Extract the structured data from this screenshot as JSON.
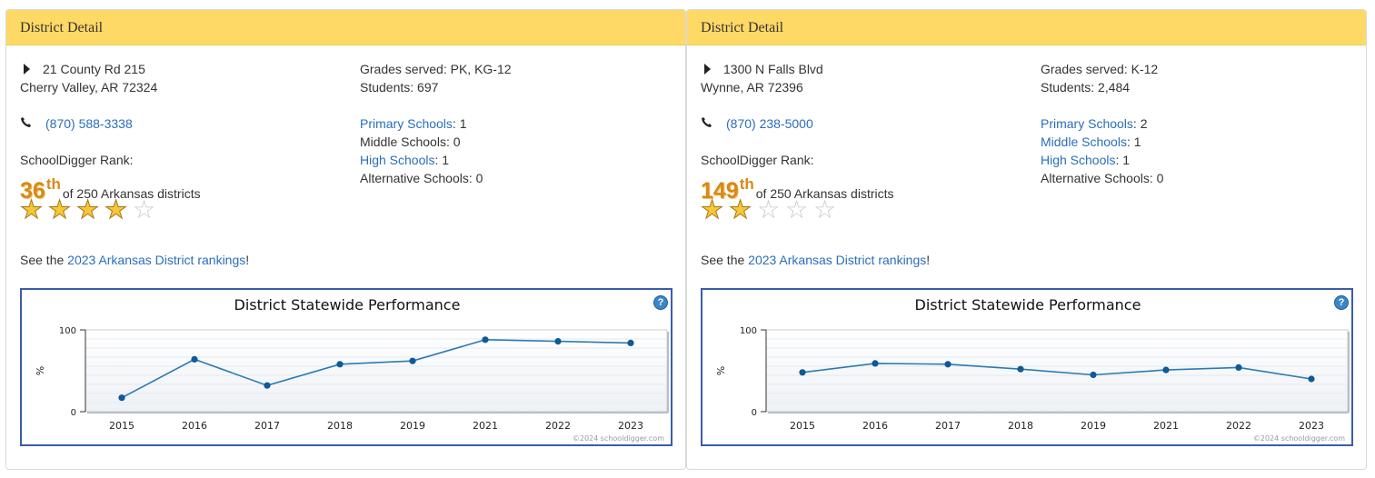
{
  "panels": [
    {
      "heading": "District Detail",
      "address_line1": "21 County Rd 215",
      "address_line2": "Cherry Valley, AR 72324",
      "phone": "(870) 588-3338",
      "rank_label": "SchoolDigger Rank:",
      "rank_number": "36",
      "rank_suffix": "th",
      "rank_of": "of 250 Arkansas districts",
      "star_rating": 4,
      "star_max": 5,
      "see_prefix": "See the ",
      "see_link": "2023 Arkansas District rankings",
      "see_suffix": "!",
      "grades_label": "Grades served:",
      "grades_value": "PK, KG-12",
      "students_label": "Students:",
      "students_value": "697",
      "primary_label": "Primary Schools",
      "primary_value": ": 1",
      "primary_link": true,
      "middle_label": "Middle Schools",
      "middle_value": ": 0",
      "middle_link": false,
      "high_label": "High Schools",
      "high_value": ": 1",
      "high_link": true,
      "alt_label": "Alternative Schools",
      "alt_value": ": 0",
      "chart_data": {
        "type": "line",
        "title": "District Statewide Performance",
        "ylabel": "%",
        "ylim": [
          0,
          100
        ],
        "yticks": [
          "0",
          "100"
        ],
        "categories": [
          "2015",
          "2016",
          "2017",
          "2018",
          "2019",
          "2021",
          "2022",
          "2023"
        ],
        "values": [
          17,
          64,
          32,
          58,
          62,
          88,
          86,
          84
        ],
        "copyright": "©2024 schooldigger.com",
        "line_color": "#2b7bb3",
        "point_color": "#0f5a96"
      }
    },
    {
      "heading": "District Detail",
      "address_line1": "1300 N Falls Blvd",
      "address_line2": "Wynne, AR 72396",
      "phone": "(870) 238-5000",
      "rank_label": "SchoolDigger Rank:",
      "rank_number": "149",
      "rank_suffix": "th",
      "rank_of": "of 250 Arkansas districts",
      "star_rating": 2,
      "star_max": 5,
      "see_prefix": "See the ",
      "see_link": "2023 Arkansas District rankings",
      "see_suffix": "!",
      "grades_label": "Grades served:",
      "grades_value": "K-12",
      "students_label": "Students:",
      "students_value": "2,484",
      "primary_label": "Primary Schools",
      "primary_value": ": 2",
      "primary_link": true,
      "middle_label": "Middle Schools",
      "middle_value": ": 1",
      "middle_link": true,
      "high_label": "High Schools",
      "high_value": ": 1",
      "high_link": true,
      "alt_label": "Alternative Schools",
      "alt_value": ": 0",
      "chart_data": {
        "type": "line",
        "title": "District Statewide Performance",
        "ylabel": "%",
        "ylim": [
          0,
          100
        ],
        "yticks": [
          "0",
          "100"
        ],
        "categories": [
          "2015",
          "2016",
          "2017",
          "2018",
          "2019",
          "2021",
          "2022",
          "2023"
        ],
        "values": [
          48,
          59,
          58,
          52,
          45,
          51,
          54,
          40
        ],
        "copyright": "©2024 schooldigger.com",
        "line_color": "#2b7bb3",
        "point_color": "#0f5a96"
      }
    }
  ],
  "icons": {
    "help": "?",
    "phone": "📞",
    "star_on": "★",
    "star_off": "☆"
  }
}
